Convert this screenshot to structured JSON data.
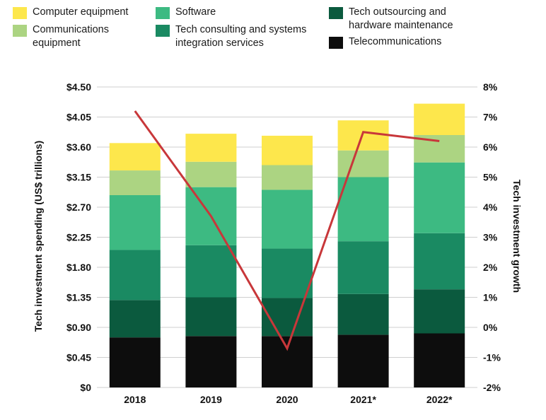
{
  "chart_data": {
    "type": "bar",
    "stacked": true,
    "categories": [
      "2018",
      "2019",
      "2020",
      "2021*",
      "2022*"
    ],
    "series": [
      {
        "name": "Telecommunications",
        "color": "#0d0d0d",
        "values": [
          0.75,
          0.77,
          0.77,
          0.79,
          0.81
        ]
      },
      {
        "name": "Tech outsourcing and hardware maintenance",
        "color": "#0b5a3e",
        "values": [
          0.56,
          0.58,
          0.57,
          0.61,
          0.66
        ]
      },
      {
        "name": "Tech consulting and systems integration services",
        "color": "#1a8a62",
        "values": [
          0.75,
          0.78,
          0.74,
          0.79,
          0.84
        ]
      },
      {
        "name": "Software",
        "color": "#3dba82",
        "values": [
          0.82,
          0.87,
          0.88,
          0.96,
          1.06
        ]
      },
      {
        "name": "Communications equipment",
        "color": "#acd482",
        "values": [
          0.37,
          0.38,
          0.37,
          0.4,
          0.41
        ]
      },
      {
        "name": "Computer equipment",
        "color": "#fde74c",
        "values": [
          0.41,
          0.42,
          0.44,
          0.45,
          0.47
        ]
      }
    ],
    "line_series": {
      "name": "Tech investment growth",
      "color": "#c8373a",
      "values": [
        7.2,
        3.7,
        -0.7,
        6.5,
        6.2
      ],
      "axis": "right"
    },
    "ylabel": "Tech investment spending (US$ trillions)",
    "y2label": "Tech investment growth",
    "ylim": [
      0,
      4.5
    ],
    "y2lim": [
      -2,
      8
    ],
    "yticks": [
      "$0",
      "$0.45",
      "$0.90",
      "$1.35",
      "$1.80",
      "$2.25",
      "$2.70",
      "$3.15",
      "$3.60",
      "$4.05",
      "$4.50"
    ],
    "y2ticks": [
      "-2%",
      "-1%",
      "0%",
      "1%",
      "2%",
      "3%",
      "4%",
      "5%",
      "6%",
      "7%",
      "8%"
    ],
    "gridlines": true,
    "legend_position": "top"
  },
  "legend": [
    {
      "label": "Computer equipment",
      "color": "#fde74c"
    },
    {
      "label": "Communications equipment",
      "color": "#acd482"
    },
    {
      "label": "Software",
      "color": "#3dba82"
    },
    {
      "label": "Tech consulting and systems integration services",
      "color": "#1a8a62"
    },
    {
      "label": "Tech outsourcing and hardware maintenance",
      "color": "#0b5a3e"
    },
    {
      "label": "Telecommunications",
      "color": "#0d0d0d"
    }
  ]
}
